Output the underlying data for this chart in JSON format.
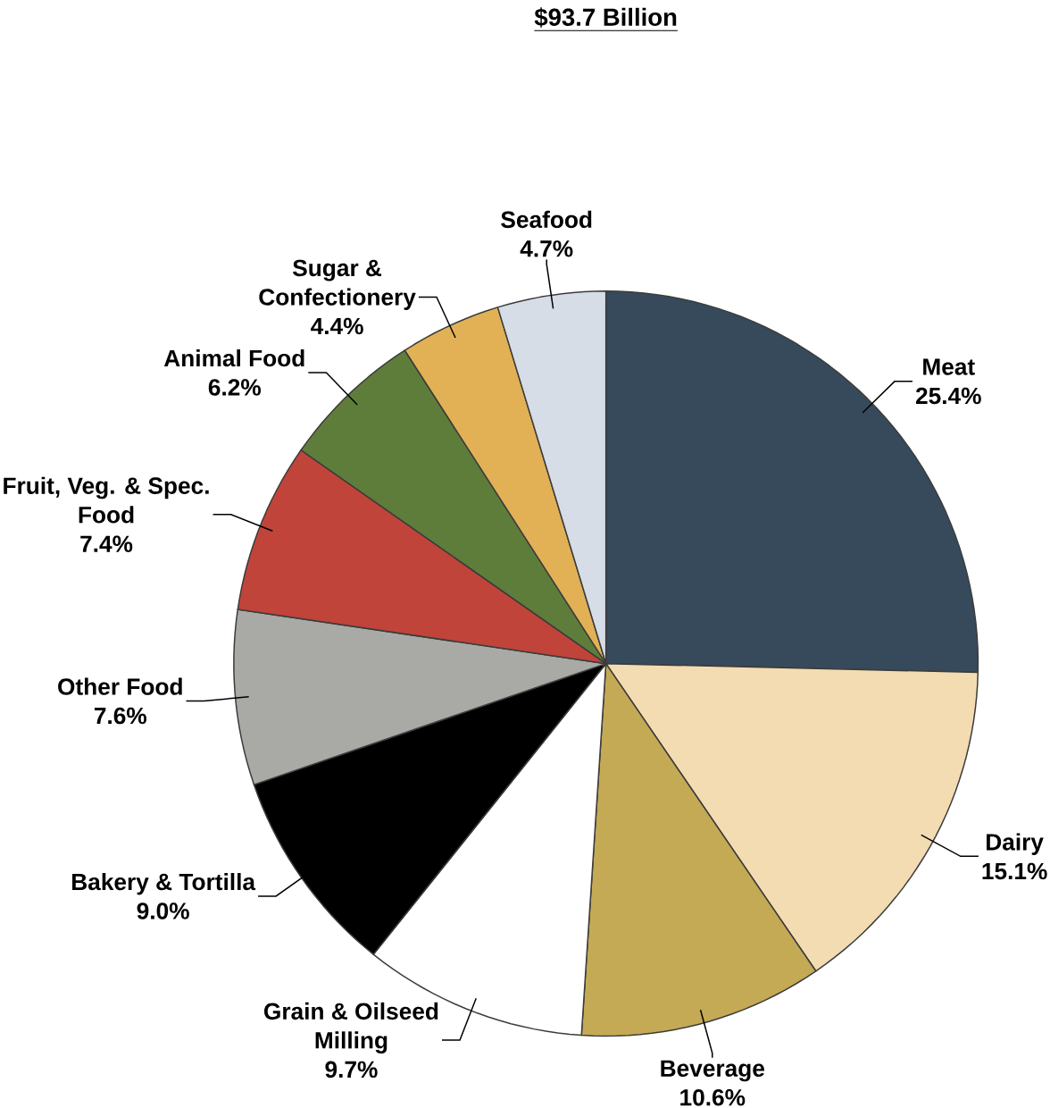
{
  "chart_data": {
    "type": "pie",
    "title": "$93.7 Billion",
    "categories": [
      "Meat",
      "Dairy",
      "Beverage",
      "Grain & Oilseed Milling",
      "Bakery & Tortilla",
      "Other Food",
      "Fruit, Veg. & Spec. Food",
      "Animal Food",
      "Sugar & Confectionery",
      "Seafood"
    ],
    "values": [
      25.4,
      15.1,
      10.6,
      9.7,
      9.0,
      7.6,
      7.4,
      6.2,
      4.4,
      4.7
    ],
    "value_labels": [
      "25.4%",
      "15.1%",
      "10.6%",
      "9.7%",
      "9.0%",
      "7.6%",
      "7.4%",
      "6.2%",
      "4.4%",
      "4.7%"
    ],
    "colors": [
      "#364a5c",
      "#f3dcb2",
      "#c4aa55",
      "#ffffff",
      "#000000",
      "#a9aaa6",
      "#c0443a",
      "#5f7d3a",
      "#e2b155",
      "#d6dde6"
    ]
  }
}
